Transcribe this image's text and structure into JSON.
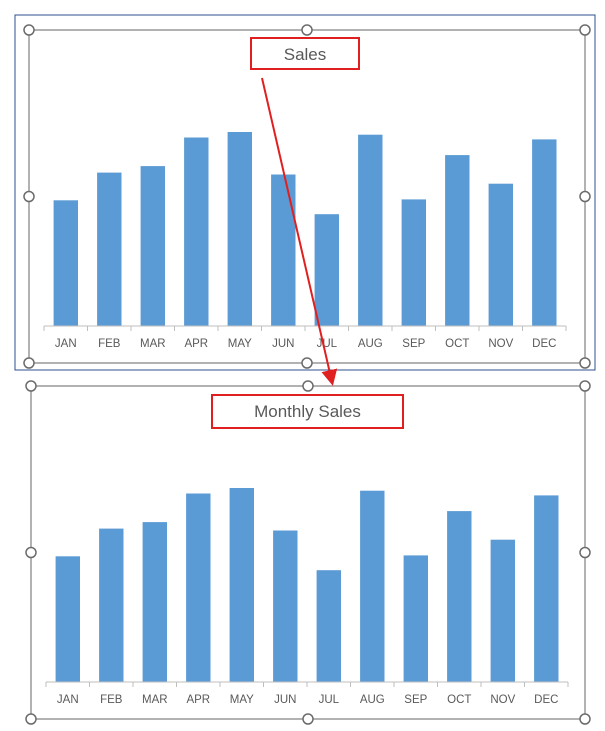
{
  "colors": {
    "bar": "#5b9bd5",
    "axis": "#bfbfbf",
    "frame": "#7f7f7f",
    "title_box": "#e02020",
    "arrow": "#e02020",
    "tick_text": "#595959",
    "title_text": "#595959",
    "outer_border": "#2e4f8f"
  },
  "chart_data": [
    {
      "type": "bar",
      "title": "Sales",
      "xlabel": "",
      "ylabel": "",
      "categories": [
        "JAN",
        "FEB",
        "MAR",
        "APR",
        "MAY",
        "JUN",
        "JUL",
        "AUG",
        "SEP",
        "OCT",
        "NOV",
        "DEC"
      ],
      "values": [
        136,
        166,
        173,
        204,
        210,
        164,
        121,
        207,
        137,
        185,
        154,
        202
      ],
      "ylim": [
        0,
        250
      ],
      "grid": false,
      "legend": "none",
      "selected": true
    },
    {
      "type": "bar",
      "title": "Monthly Sales",
      "xlabel": "",
      "ylabel": "",
      "categories": [
        "JAN",
        "FEB",
        "MAR",
        "APR",
        "MAY",
        "JUN",
        "JUL",
        "AUG",
        "SEP",
        "OCT",
        "NOV",
        "DEC"
      ],
      "values": [
        136,
        166,
        173,
        204,
        210,
        164,
        121,
        207,
        137,
        185,
        154,
        202
      ],
      "ylim": [
        0,
        250
      ],
      "grid": false,
      "legend": "none",
      "selected": true
    }
  ]
}
